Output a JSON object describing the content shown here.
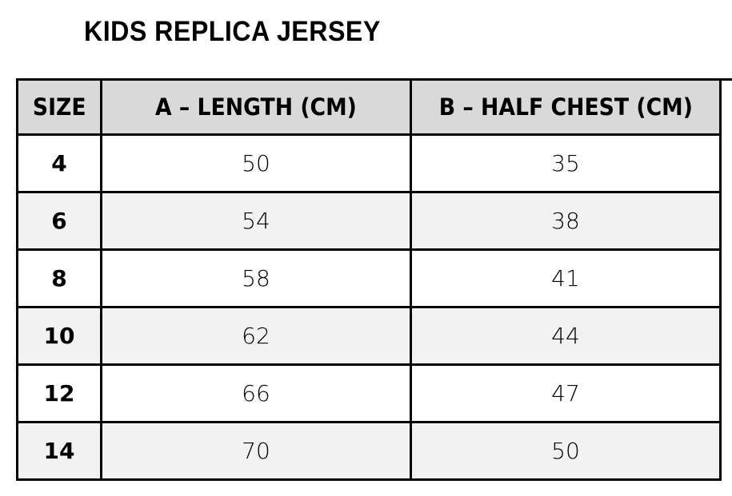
{
  "title": "KIDS REPLICA JERSEY",
  "colors": {
    "header_bg": "#d9d9d9",
    "alt_row_bg": "#f2f2f2",
    "border": "#000000"
  },
  "table": {
    "headers": [
      "SIZE",
      "A – LENGTH (CM)",
      "B – HALF CHEST (CM)"
    ],
    "rows": [
      [
        "4",
        "50",
        "35"
      ],
      [
        "6",
        "54",
        "38"
      ],
      [
        "8",
        "58",
        "41"
      ],
      [
        "10",
        "62",
        "44"
      ],
      [
        "12",
        "66",
        "47"
      ],
      [
        "14",
        "70",
        "50"
      ]
    ]
  }
}
